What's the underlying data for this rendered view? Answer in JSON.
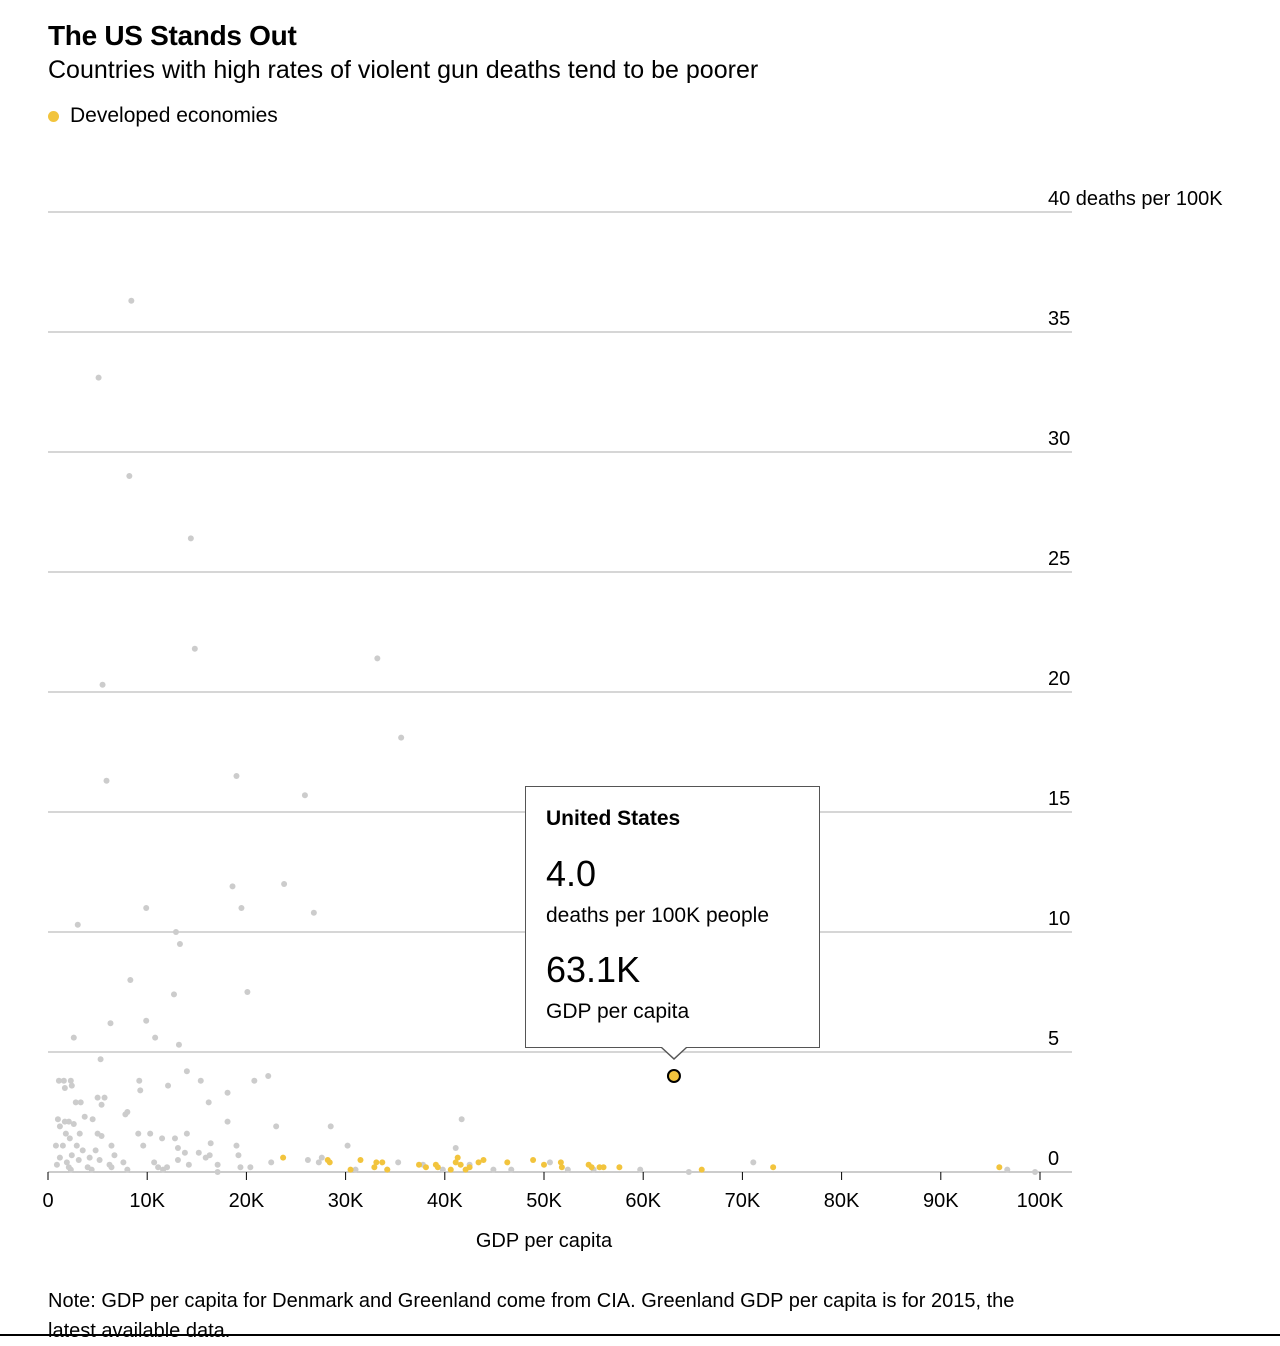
{
  "header": {
    "title": "The US Stands Out",
    "subtitle": "Countries with high rates of violent gun deaths tend to be poorer"
  },
  "legend": {
    "items": [
      {
        "label": "Developed economies",
        "color": "#f2c43d"
      }
    ]
  },
  "colors": {
    "other": "#cccccc",
    "developed": "#f2c43d",
    "gridline": "#c8c8c8",
    "highlight_stroke": "#000000"
  },
  "tooltip": {
    "name": "United States",
    "value1": "4.0",
    "label1": "deaths per 100K people",
    "value2": "63.1K",
    "label2": "GDP per capita"
  },
  "note": "Note: GDP per capita for Denmark and Greenland come from CIA. Greenland GDP per capita is for 2015, the latest available data.",
  "chart_data": {
    "type": "scatter",
    "xlabel": "GDP per capita",
    "ylabel": "",
    "xlim": [
      0,
      100000
    ],
    "ylim": [
      0,
      40
    ],
    "x_ticks": [
      {
        "value": 0,
        "label": "0"
      },
      {
        "value": 10000,
        "label": "10K"
      },
      {
        "value": 20000,
        "label": "20K"
      },
      {
        "value": 30000,
        "label": "30K"
      },
      {
        "value": 40000,
        "label": "40K"
      },
      {
        "value": 50000,
        "label": "50K"
      },
      {
        "value": 60000,
        "label": "60K"
      },
      {
        "value": 70000,
        "label": "70K"
      },
      {
        "value": 80000,
        "label": "80K"
      },
      {
        "value": 90000,
        "label": "90K"
      },
      {
        "value": 100000,
        "label": "100K"
      }
    ],
    "y_ticks": [
      {
        "value": 0,
        "label": "0"
      },
      {
        "value": 5,
        "label": "5"
      },
      {
        "value": 10,
        "label": "10"
      },
      {
        "value": 15,
        "label": "15"
      },
      {
        "value": 20,
        "label": "20"
      },
      {
        "value": 25,
        "label": "25"
      },
      {
        "value": 30,
        "label": "30"
      },
      {
        "value": 35,
        "label": "35"
      },
      {
        "value": 40,
        "label": "40 deaths per 100K"
      }
    ],
    "grid": true,
    "legend_position": "top-left",
    "highlight": {
      "name": "United States",
      "x": 63100,
      "y": 4.0,
      "series": "Developed economies"
    },
    "series": [
      {
        "name": "Developed economies",
        "points": [
          [
            23700,
            0.6
          ],
          [
            28200,
            0.5
          ],
          [
            28400,
            0.4
          ],
          [
            30500,
            0.1
          ],
          [
            31500,
            0.5
          ],
          [
            32900,
            0.2
          ],
          [
            33100,
            0.4
          ],
          [
            33700,
            0.4
          ],
          [
            34200,
            0.1
          ],
          [
            37400,
            0.3
          ],
          [
            38100,
            0.2
          ],
          [
            39100,
            0.3
          ],
          [
            39300,
            0.2
          ],
          [
            40600,
            0.1
          ],
          [
            41100,
            0.4
          ],
          [
            41300,
            0.6
          ],
          [
            41600,
            0.3
          ],
          [
            42100,
            0.1
          ],
          [
            42500,
            0.2
          ],
          [
            43400,
            0.4
          ],
          [
            43900,
            0.5
          ],
          [
            46300,
            0.4
          ],
          [
            48900,
            0.5
          ],
          [
            50000,
            0.3
          ],
          [
            51700,
            0.4
          ],
          [
            51800,
            0.2
          ],
          [
            54500,
            0.3
          ],
          [
            54800,
            0.2
          ],
          [
            55600,
            0.2
          ],
          [
            56000,
            0.2
          ],
          [
            57600,
            0.2
          ],
          [
            65900,
            0.1
          ],
          [
            73100,
            0.2
          ],
          [
            95900,
            0.2
          ],
          [
            63100,
            4.0
          ]
        ]
      },
      {
        "name": "Other",
        "points": [
          [
            8400,
            36.3
          ],
          [
            5100,
            33.1
          ],
          [
            8200,
            29.0
          ],
          [
            14400,
            26.4
          ],
          [
            14800,
            21.8
          ],
          [
            33200,
            21.4
          ],
          [
            5500,
            20.3
          ],
          [
            35600,
            18.1
          ],
          [
            5900,
            16.3
          ],
          [
            19000,
            16.5
          ],
          [
            25900,
            15.7
          ],
          [
            23800,
            12.0
          ],
          [
            18600,
            11.9
          ],
          [
            9900,
            11.0
          ],
          [
            19500,
            11.0
          ],
          [
            26800,
            10.8
          ],
          [
            3000,
            10.3
          ],
          [
            12900,
            10.0
          ],
          [
            13300,
            9.5
          ],
          [
            8300,
            8.0
          ],
          [
            20100,
            7.5
          ],
          [
            12700,
            7.4
          ],
          [
            9900,
            6.3
          ],
          [
            6300,
            6.2
          ],
          [
            2600,
            5.6
          ],
          [
            10800,
            5.6
          ],
          [
            13200,
            5.3
          ],
          [
            5300,
            4.7
          ],
          [
            14000,
            4.2
          ],
          [
            22200,
            4.0
          ],
          [
            1100,
            3.8
          ],
          [
            1600,
            3.8
          ],
          [
            2300,
            3.8
          ],
          [
            9200,
            3.8
          ],
          [
            15400,
            3.8
          ],
          [
            20800,
            3.8
          ],
          [
            2400,
            3.6
          ],
          [
            1700,
            3.5
          ],
          [
            12100,
            3.6
          ],
          [
            18100,
            3.3
          ],
          [
            9300,
            3.4
          ],
          [
            5000,
            3.1
          ],
          [
            5700,
            3.1
          ],
          [
            2800,
            2.9
          ],
          [
            3300,
            2.9
          ],
          [
            5400,
            2.8
          ],
          [
            16200,
            2.9
          ],
          [
            8000,
            2.5
          ],
          [
            1000,
            2.2
          ],
          [
            1700,
            2.1
          ],
          [
            3700,
            2.3
          ],
          [
            4500,
            2.2
          ],
          [
            7800,
            2.4
          ],
          [
            41700,
            2.2
          ],
          [
            2100,
            2.1
          ],
          [
            2600,
            2.0
          ],
          [
            18100,
            2.1
          ],
          [
            1200,
            1.9
          ],
          [
            23000,
            1.9
          ],
          [
            28500,
            1.9
          ],
          [
            3200,
            1.6
          ],
          [
            5000,
            1.6
          ],
          [
            9100,
            1.6
          ],
          [
            10300,
            1.6
          ],
          [
            14000,
            1.6
          ],
          [
            1800,
            1.6
          ],
          [
            11500,
            1.4
          ],
          [
            2200,
            1.4
          ],
          [
            5400,
            1.5
          ],
          [
            12800,
            1.4
          ],
          [
            30200,
            1.1
          ],
          [
            800,
            1.1
          ],
          [
            1500,
            1.1
          ],
          [
            2900,
            1.1
          ],
          [
            6400,
            1.1
          ],
          [
            16400,
            1.2
          ],
          [
            9600,
            1.1
          ],
          [
            13100,
            1.0
          ],
          [
            19000,
            1.1
          ],
          [
            41100,
            1.0
          ],
          [
            4800,
            0.9
          ],
          [
            3500,
            0.9
          ],
          [
            6700,
            0.7
          ],
          [
            13800,
            0.8
          ],
          [
            15200,
            0.8
          ],
          [
            2400,
            0.7
          ],
          [
            1200,
            0.6
          ],
          [
            4200,
            0.6
          ],
          [
            5200,
            0.5
          ],
          [
            16300,
            0.7
          ],
          [
            15900,
            0.6
          ],
          [
            19200,
            0.7
          ],
          [
            26200,
            0.5
          ],
          [
            27600,
            0.6
          ],
          [
            1900,
            0.4
          ],
          [
            3100,
            0.5
          ],
          [
            7600,
            0.4
          ],
          [
            10700,
            0.4
          ],
          [
            13100,
            0.5
          ],
          [
            27300,
            0.4
          ],
          [
            35300,
            0.4
          ],
          [
            50600,
            0.4
          ],
          [
            71100,
            0.4
          ],
          [
            900,
            0.3
          ],
          [
            2100,
            0.2
          ],
          [
            4000,
            0.2
          ],
          [
            6200,
            0.3
          ],
          [
            11100,
            0.2
          ],
          [
            14200,
            0.3
          ],
          [
            17100,
            0.3
          ],
          [
            19400,
            0.2
          ],
          [
            20400,
            0.2
          ],
          [
            22500,
            0.4
          ],
          [
            12000,
            0.2
          ],
          [
            8000,
            0.1
          ],
          [
            2300,
            0.1
          ],
          [
            4400,
            0.1
          ],
          [
            6400,
            0.2
          ],
          [
            11600,
            0.1
          ],
          [
            17100,
            0.0
          ],
          [
            31000,
            0.1
          ],
          [
            34200,
            0.1
          ],
          [
            37800,
            0.3
          ],
          [
            39800,
            0.1
          ],
          [
            42500,
            0.3
          ],
          [
            44900,
            0.1
          ],
          [
            46700,
            0.1
          ],
          [
            52400,
            0.1
          ],
          [
            55000,
            0.1
          ],
          [
            59700,
            0.1
          ],
          [
            64600,
            0.0
          ],
          [
            96700,
            0.1
          ],
          [
            99500,
            0.0
          ]
        ]
      }
    ]
  }
}
